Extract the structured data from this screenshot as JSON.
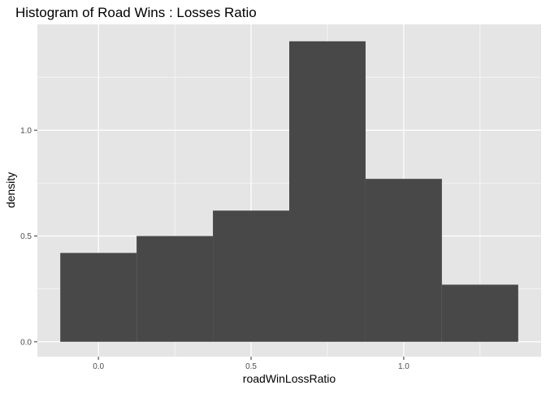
{
  "chart_data": {
    "type": "bar",
    "title": "Histogram of Road Wins : Losses Ratio",
    "xlabel": "roadWinLossRatio",
    "ylabel": "density",
    "bins": [
      {
        "x0": -0.125,
        "x1": 0.125,
        "density": 0.42
      },
      {
        "x0": 0.125,
        "x1": 0.375,
        "density": 0.5
      },
      {
        "x0": 0.375,
        "x1": 0.625,
        "density": 0.62
      },
      {
        "x0": 0.625,
        "x1": 0.875,
        "density": 1.42
      },
      {
        "x0": 0.875,
        "x1": 1.125,
        "density": 0.77
      },
      {
        "x0": 1.125,
        "x1": 1.375,
        "density": 0.27
      }
    ],
    "xlim": [
      -0.2,
      1.45
    ],
    "ylim": [
      -0.07,
      1.5
    ],
    "x_ticks": [
      {
        "value": 0.0,
        "label": "0.0"
      },
      {
        "value": 0.5,
        "label": "0.5"
      },
      {
        "value": 1.0,
        "label": "1.0"
      }
    ],
    "y_ticks": [
      {
        "value": 0.0,
        "label": "0.0"
      },
      {
        "value": 0.5,
        "label": "0.5"
      },
      {
        "value": 1.0,
        "label": "1.0"
      }
    ],
    "x_minor": [
      0.25,
      0.75,
      1.25
    ],
    "y_minor": [
      0.25,
      0.75,
      1.25
    ],
    "grid": true,
    "colors": {
      "bar": "#484848",
      "panel": "#e5e5e5",
      "grid": "#ffffff",
      "text": "#4d4d4d",
      "title": "#000000"
    }
  }
}
